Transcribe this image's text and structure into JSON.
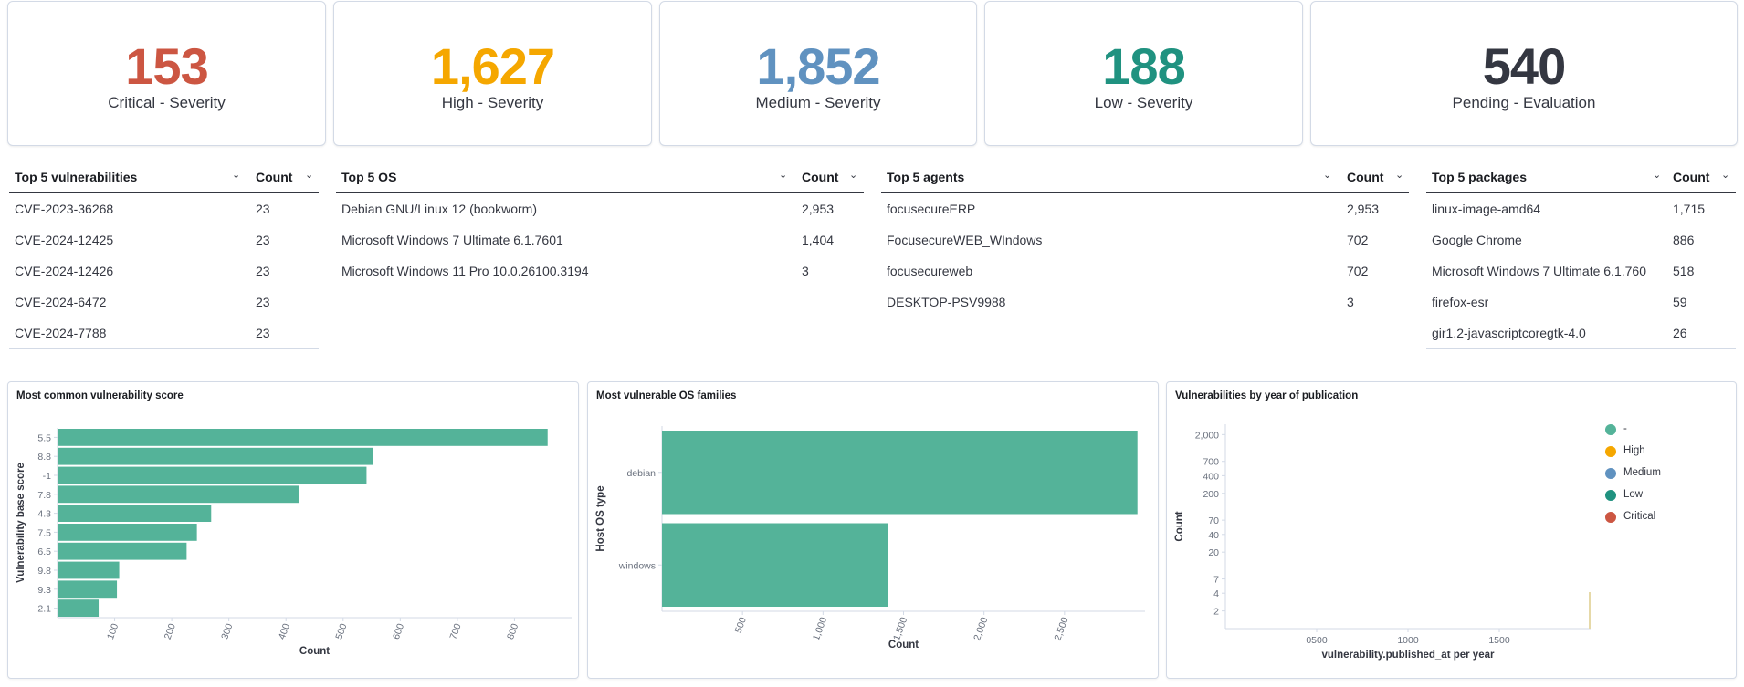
{
  "colors": {
    "critical": "#cc5642",
    "high": "#f5a700",
    "medium": "#6092c0",
    "low": "#209280",
    "pending": "#343741",
    "bar": "#54b399"
  },
  "metrics": [
    {
      "value": "153",
      "label": "Critical - Severity",
      "color": "#cc5642"
    },
    {
      "value": "1,627",
      "label": "High - Severity",
      "color": "#f5a700"
    },
    {
      "value": "1,852",
      "label": "Medium - Severity",
      "color": "#6092c0"
    },
    {
      "value": "188",
      "label": "Low - Severity",
      "color": "#209280"
    },
    {
      "value": "540",
      "label": "Pending - Evaluation",
      "color": "#343741"
    }
  ],
  "tables": {
    "vulnerabilities": {
      "header": "Top 5 vulnerabilities",
      "count_header": "Count",
      "rows": [
        {
          "name": "CVE-2023-36268",
          "count": "23"
        },
        {
          "name": "CVE-2024-12425",
          "count": "23"
        },
        {
          "name": "CVE-2024-12426",
          "count": "23"
        },
        {
          "name": "CVE-2024-6472",
          "count": "23"
        },
        {
          "name": "CVE-2024-7788",
          "count": "23"
        }
      ]
    },
    "os": {
      "header": "Top 5 OS",
      "count_header": "Count",
      "rows": [
        {
          "name": "Debian GNU/Linux 12 (bookworm)",
          "count": "2,953"
        },
        {
          "name": "Microsoft Windows 7 Ultimate 6.1.7601",
          "count": "1,404"
        },
        {
          "name": "Microsoft Windows 11 Pro 10.0.26100.3194",
          "count": "3"
        }
      ]
    },
    "agents": {
      "header": "Top 5 agents",
      "count_header": "Count",
      "rows": [
        {
          "name": "focusecureERP",
          "count": "2,953"
        },
        {
          "name": "FocusecureWEB_WIndows",
          "count": "702"
        },
        {
          "name": "focusecureweb",
          "count": "702"
        },
        {
          "name": "DESKTOP-PSV9988",
          "count": "3"
        }
      ]
    },
    "packages": {
      "header": "Top 5 packages",
      "count_header": "Count",
      "rows": [
        {
          "name": "linux-image-amd64",
          "count": "1,715"
        },
        {
          "name": "Google Chrome",
          "count": "886"
        },
        {
          "name": "Microsoft Windows 7 Ultimate 6.1.760",
          "count": "518"
        },
        {
          "name": "firefox-esr",
          "count": "59"
        },
        {
          "name": "gir1.2-javascriptcoregtk-4.0",
          "count": "26"
        }
      ]
    }
  },
  "chart_data": [
    {
      "type": "bar",
      "orientation": "horizontal",
      "title": "Most common vulnerability score",
      "categories": [
        "5.5",
        "8.8",
        "-1",
        "7.8",
        "4.3",
        "7.5",
        "6.5",
        "9.8",
        "9.3",
        "2.1"
      ],
      "values": [
        858,
        552,
        541,
        422,
        269,
        244,
        226,
        108,
        104,
        72
      ],
      "xlabel": "Count",
      "ylabel": "Vulnerability base score",
      "xlim": [
        0,
        900
      ],
      "xticks": [
        "100",
        "200",
        "300",
        "400",
        "500",
        "600",
        "700",
        "800"
      ],
      "xtick_values": [
        100,
        200,
        300,
        400,
        500,
        600,
        700,
        800
      ]
    },
    {
      "type": "bar",
      "orientation": "horizontal",
      "title": "Most vulnerable OS families",
      "categories": [
        "debian",
        "windows"
      ],
      "values": [
        2953,
        1406
      ],
      "xlabel": "Count",
      "ylabel": "Host OS type",
      "xlim": [
        0,
        3000
      ],
      "xticks": [
        "500",
        "1,000",
        "1,500",
        "2,000",
        "2,500"
      ],
      "xtick_values": [
        500,
        1000,
        1500,
        2000,
        2500
      ]
    },
    {
      "type": "area",
      "title": "Vulnerabilities by year of publication",
      "xlabel": "vulnerability.published_at per year",
      "ylabel": "Count",
      "yscale": "log",
      "xticks": [
        "0500",
        "1000",
        "1500"
      ],
      "xtick_values": [
        500,
        1000,
        1500
      ],
      "xlim": [
        0,
        2000
      ],
      "yticks": [
        "2,000",
        "700",
        "400",
        "200",
        "70",
        "40",
        "20",
        "7",
        "4",
        "2"
      ],
      "ytick_values": [
        2000,
        700,
        400,
        200,
        70,
        40,
        20,
        7,
        4,
        2
      ],
      "ylim": [
        1,
        3000
      ],
      "legend": [
        {
          "label": "-",
          "color": "#54b399"
        },
        {
          "label": "High",
          "color": "#f5a700"
        },
        {
          "label": "Medium",
          "color": "#6092c0"
        },
        {
          "label": "Low",
          "color": "#209280"
        },
        {
          "label": "Critical",
          "color": "#cc5642"
        }
      ],
      "legend_position": "top-right"
    }
  ]
}
